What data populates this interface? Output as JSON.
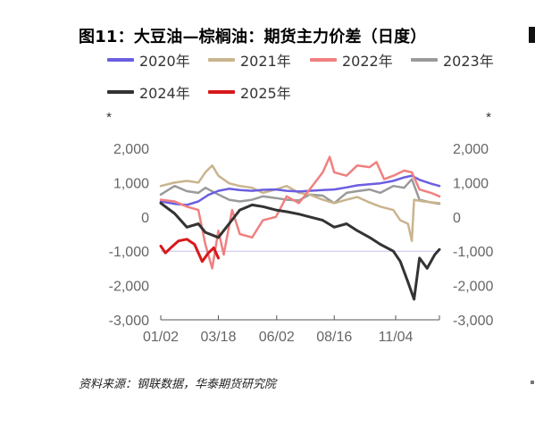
{
  "title": "图11：大豆油—棕榈油：期货主力价差（日度）",
  "source": "资料来源：钢联数据，华泰期货研究院",
  "chart_data": {
    "type": "line",
    "title": "图11：大豆油—棕榈油：期货主力价差（日度）",
    "xlabel": "",
    "ylabel_left": "*",
    "ylabel_right": "*",
    "ylim": [
      -3000,
      2000
    ],
    "y_ticks": [
      2000,
      1000,
      0,
      -1000,
      -2000,
      -3000
    ],
    "y_tick_labels": [
      "2,000",
      "1,000",
      "0",
      "-1,000",
      "-2,000",
      "-3,000"
    ],
    "x_range": [
      "01/02",
      "12/31"
    ],
    "x_ticks": [
      "01/02",
      "03/18",
      "06/02",
      "08/16",
      "11/04"
    ],
    "grid": false,
    "zero_line": true,
    "legend_position": "top",
    "series": [
      {
        "name": "2020年",
        "color": "#6b5ee0",
        "points": [
          [
            "01/02",
            450
          ],
          [
            "01/20",
            380
          ],
          [
            "02/05",
            350
          ],
          [
            "02/20",
            450
          ],
          [
            "03/05",
            640
          ],
          [
            "03/18",
            760
          ],
          [
            "04/01",
            820
          ],
          [
            "04/15",
            780
          ],
          [
            "05/01",
            760
          ],
          [
            "05/15",
            790
          ],
          [
            "06/01",
            800
          ],
          [
            "06/15",
            760
          ],
          [
            "07/01",
            740
          ],
          [
            "07/15",
            760
          ],
          [
            "08/01",
            780
          ],
          [
            "08/16",
            800
          ],
          [
            "09/01",
            860
          ],
          [
            "09/15",
            920
          ],
          [
            "10/01",
            950
          ],
          [
            "10/15",
            980
          ],
          [
            "11/01",
            1050
          ],
          [
            "11/15",
            1150
          ],
          [
            "11/25",
            1200
          ],
          [
            "12/05",
            1080
          ],
          [
            "12/20",
            970
          ],
          [
            "12/31",
            900
          ]
        ]
      },
      {
        "name": "2021年",
        "color": "#c9b48e",
        "points": [
          [
            "01/02",
            900
          ],
          [
            "01/20",
            1000
          ],
          [
            "02/05",
            1050
          ],
          [
            "02/20",
            1000
          ],
          [
            "03/01",
            1300
          ],
          [
            "03/10",
            1500
          ],
          [
            "03/18",
            1200
          ],
          [
            "04/01",
            980
          ],
          [
            "04/15",
            900
          ],
          [
            "05/01",
            850
          ],
          [
            "05/15",
            700
          ],
          [
            "06/01",
            800
          ],
          [
            "06/15",
            900
          ],
          [
            "07/01",
            700
          ],
          [
            "07/15",
            650
          ],
          [
            "08/01",
            500
          ],
          [
            "08/16",
            400
          ],
          [
            "09/01",
            500
          ],
          [
            "09/15",
            580
          ],
          [
            "10/01",
            420
          ],
          [
            "10/15",
            300
          ],
          [
            "11/01",
            200
          ],
          [
            "11/10",
            -100
          ],
          [
            "11/20",
            -200
          ],
          [
            "11/25",
            -700
          ],
          [
            "11/28",
            500
          ],
          [
            "12/10",
            450
          ],
          [
            "12/31",
            400
          ]
        ]
      },
      {
        "name": "2022年",
        "color": "#f08080",
        "points": [
          [
            "01/02",
            500
          ],
          [
            "01/20",
            450
          ],
          [
            "02/05",
            300
          ],
          [
            "02/20",
            200
          ],
          [
            "03/01",
            -800
          ],
          [
            "03/10",
            -1500
          ],
          [
            "03/18",
            -400
          ],
          [
            "03/25",
            -1100
          ],
          [
            "04/05",
            200
          ],
          [
            "04/15",
            -500
          ],
          [
            "05/01",
            -600
          ],
          [
            "05/15",
            -100
          ],
          [
            "06/01",
            0
          ],
          [
            "06/15",
            600
          ],
          [
            "07/01",
            400
          ],
          [
            "07/15",
            800
          ],
          [
            "08/01",
            1300
          ],
          [
            "08/10",
            1750
          ],
          [
            "08/16",
            1300
          ],
          [
            "09/01",
            1200
          ],
          [
            "09/15",
            1500
          ],
          [
            "10/01",
            1450
          ],
          [
            "10/10",
            1600
          ],
          [
            "10/20",
            1100
          ],
          [
            "11/01",
            1200
          ],
          [
            "11/15",
            1350
          ],
          [
            "11/25",
            1300
          ],
          [
            "12/05",
            800
          ],
          [
            "12/20",
            700
          ],
          [
            "12/31",
            600
          ]
        ]
      },
      {
        "name": "2023年",
        "color": "#9a9a9a",
        "points": [
          [
            "01/02",
            650
          ],
          [
            "01/20",
            900
          ],
          [
            "02/05",
            750
          ],
          [
            "02/20",
            700
          ],
          [
            "03/01",
            850
          ],
          [
            "03/18",
            650
          ],
          [
            "04/01",
            500
          ],
          [
            "04/15",
            450
          ],
          [
            "05/01",
            500
          ],
          [
            "05/15",
            600
          ],
          [
            "06/01",
            550
          ],
          [
            "06/15",
            500
          ],
          [
            "07/01",
            480
          ],
          [
            "07/15",
            650
          ],
          [
            "08/01",
            620
          ],
          [
            "08/16",
            400
          ],
          [
            "09/01",
            700
          ],
          [
            "09/15",
            750
          ],
          [
            "10/01",
            800
          ],
          [
            "10/15",
            700
          ],
          [
            "11/01",
            900
          ],
          [
            "11/15",
            850
          ],
          [
            "11/25",
            1100
          ],
          [
            "12/05",
            500
          ],
          [
            "12/20",
            420
          ],
          [
            "12/31",
            380
          ]
        ]
      },
      {
        "name": "2024年",
        "color": "#333333",
        "points": [
          [
            "01/02",
            400
          ],
          [
            "01/20",
            100
          ],
          [
            "02/05",
            -300
          ],
          [
            "02/20",
            -200
          ],
          [
            "03/01",
            -450
          ],
          [
            "03/18",
            -600
          ],
          [
            "04/01",
            -200
          ],
          [
            "04/15",
            200
          ],
          [
            "05/01",
            350
          ],
          [
            "05/15",
            300
          ],
          [
            "06/01",
            200
          ],
          [
            "06/15",
            150
          ],
          [
            "07/01",
            80
          ],
          [
            "07/15",
            0
          ],
          [
            "08/01",
            -100
          ],
          [
            "08/16",
            -300
          ],
          [
            "09/01",
            -200
          ],
          [
            "09/15",
            -400
          ],
          [
            "10/01",
            -600
          ],
          [
            "10/15",
            -800
          ],
          [
            "11/01",
            -1000
          ],
          [
            "11/10",
            -1300
          ],
          [
            "11/20",
            -1900
          ],
          [
            "11/28",
            -2400
          ],
          [
            "12/05",
            -1200
          ],
          [
            "12/15",
            -1500
          ],
          [
            "12/25",
            -1100
          ],
          [
            "12/31",
            -950
          ]
        ]
      },
      {
        "name": "2025年",
        "color": "#d7191c",
        "points": [
          [
            "01/02",
            -850
          ],
          [
            "01/08",
            -1050
          ],
          [
            "01/15",
            -900
          ],
          [
            "01/25",
            -700
          ],
          [
            "02/05",
            -650
          ],
          [
            "02/15",
            -800
          ],
          [
            "02/25",
            -1300
          ],
          [
            "03/05",
            -1050
          ],
          [
            "03/12",
            -900
          ],
          [
            "03/18",
            -1200
          ]
        ]
      }
    ]
  }
}
